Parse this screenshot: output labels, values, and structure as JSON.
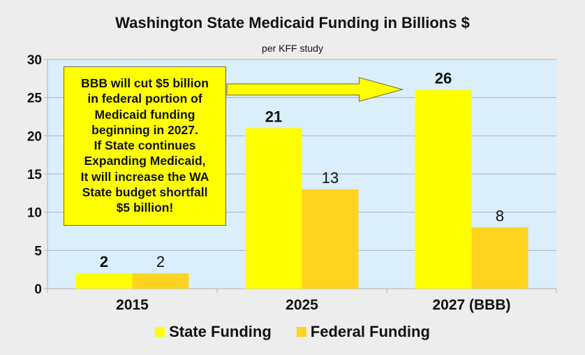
{
  "chart_data": {
    "type": "bar",
    "title": "Washington State Medicaid Funding in Billions $",
    "subtitle": "per KFF study",
    "categories": [
      "2015",
      "2025",
      "2027 (BBB)"
    ],
    "series": [
      {
        "name": "State Funding",
        "color": "#ffff00",
        "values": [
          2,
          21,
          26
        ],
        "labels": [
          "2",
          "21",
          "26"
        ],
        "label_bold": true
      },
      {
        "name": "Federal Funding",
        "color": "#ffd320",
        "values": [
          2,
          13,
          8
        ],
        "labels": [
          "2",
          "13",
          "8"
        ],
        "label_bold": false
      }
    ],
    "ylim": [
      0,
      30
    ],
    "yticks": [
      "0",
      "5",
      "10",
      "15",
      "20",
      "25",
      "30"
    ],
    "grid": true,
    "legend": "bottom",
    "plot_background": "#daeefb",
    "annotation": {
      "lines": [
        "BBB will cut $5 billion",
        "in federal portion of",
        "Medicaid funding",
        "beginning in 2027.",
        "If State continues",
        "Expanding Medicaid,",
        "It will increase the WA",
        "State budget shortfall",
        "$5 billion!"
      ],
      "arrow_target": "2027 (BBB)"
    }
  }
}
